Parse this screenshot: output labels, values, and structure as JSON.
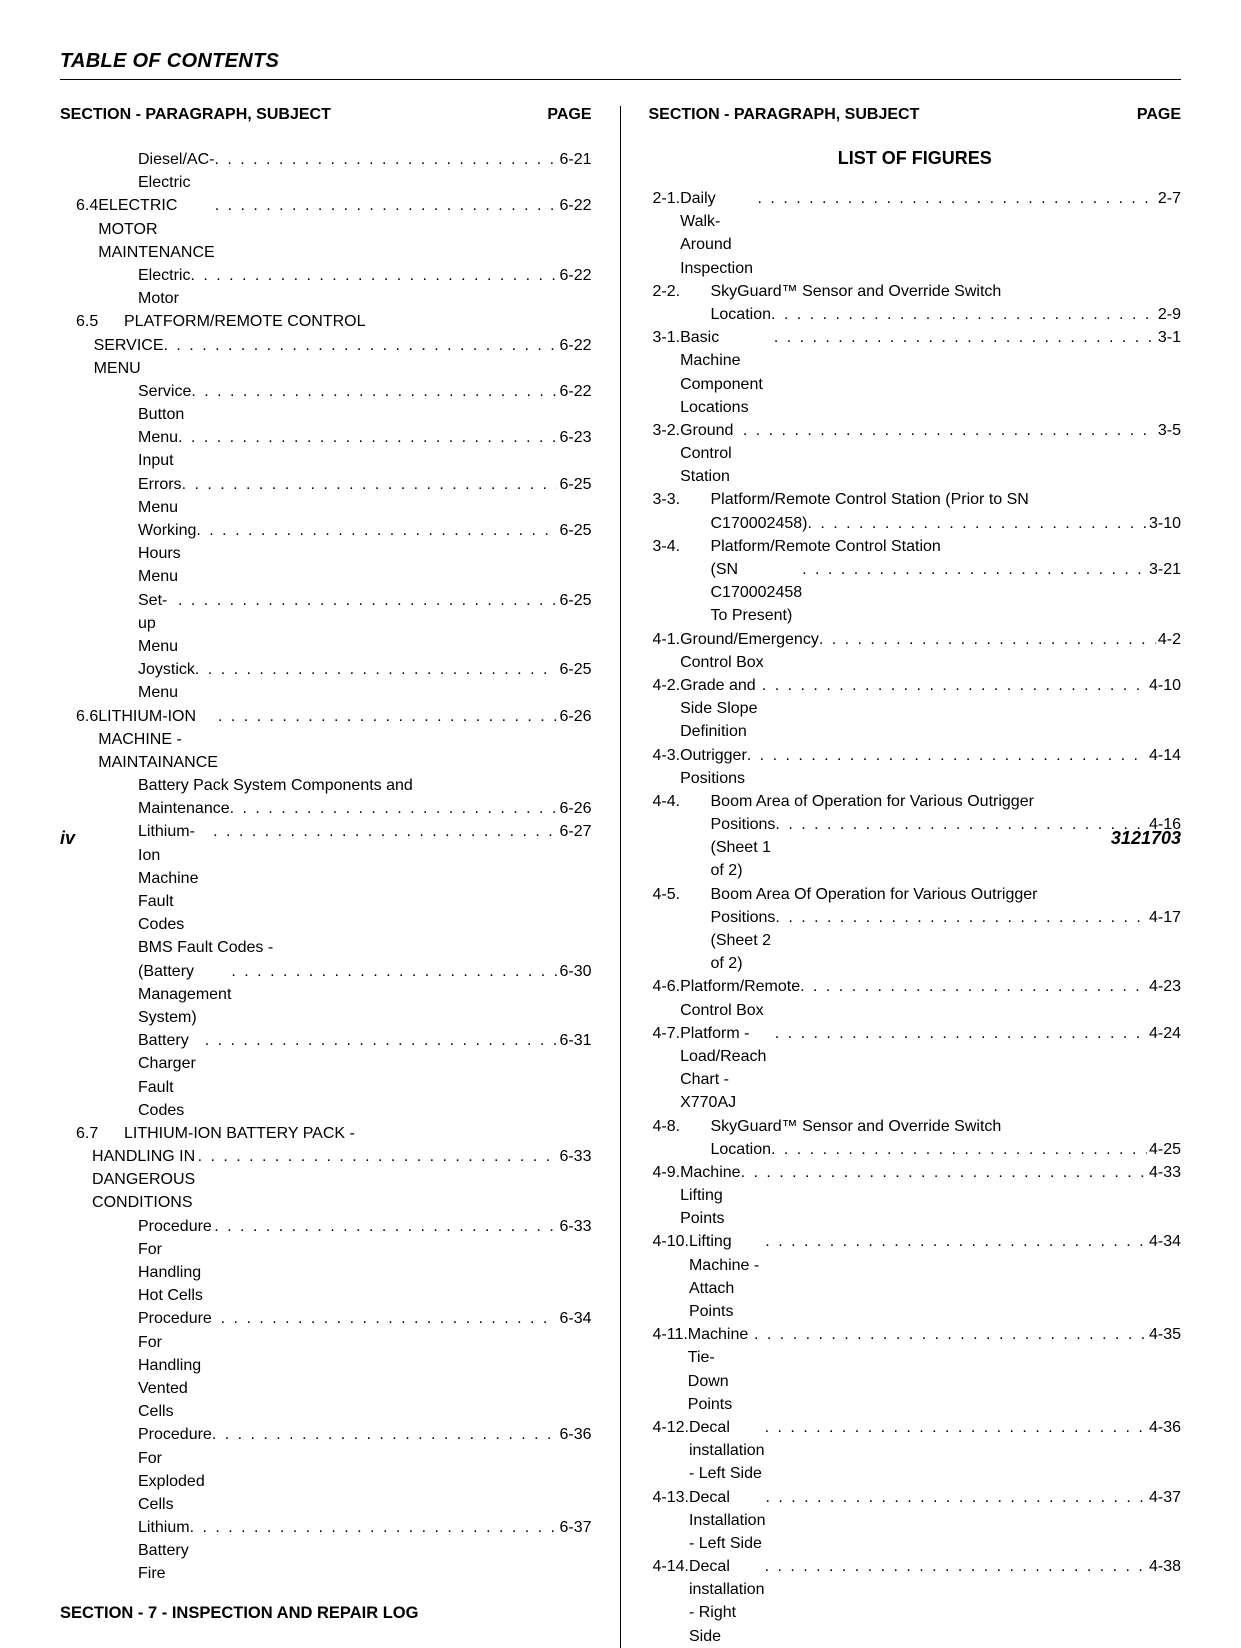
{
  "title": "TABLE OF CONTENTS",
  "col_header_left": "SECTION - PARAGRAPH, SUBJECT",
  "col_header_right": "PAGE",
  "lof_title": "LIST OF FIGURES",
  "section7": "SECTION - 7 - INSPECTION AND REPAIR LOG",
  "page_left": "iv",
  "page_right": "3121703",
  "left_entries": [
    {
      "kind": "sub",
      "label": "Diesel/AC-Electric",
      "page": "6-21"
    },
    {
      "kind": "section",
      "num": "6.4",
      "label": "ELECTRIC MOTOR MAINTENANCE",
      "page": "6-22"
    },
    {
      "kind": "sub",
      "label": "Electric Motor",
      "page": "6-22"
    },
    {
      "kind": "section2",
      "num": "6.5",
      "line1": "PLATFORM/REMOTE CONTROL",
      "label": "SERVICE MENU",
      "page": "6-22"
    },
    {
      "kind": "sub",
      "label": "Service Button",
      "page": "6-22"
    },
    {
      "kind": "sub",
      "label": "Menu Input",
      "page": "6-23"
    },
    {
      "kind": "sub",
      "label": "Errors Menu",
      "page": "6-25"
    },
    {
      "kind": "sub",
      "label": "Working Hours Menu",
      "page": "6-25"
    },
    {
      "kind": "sub",
      "label": "Set-up Menu",
      "page": "6-25"
    },
    {
      "kind": "sub",
      "label": "Joystick Menu",
      "page": "6-25"
    },
    {
      "kind": "section",
      "num": "6.6",
      "label": "LITHIUM-ION MACHINE - MAINTAINANCE",
      "page": "6-26"
    },
    {
      "kind": "sub2",
      "line1": "Battery Pack System Components and",
      "label": "Maintenance",
      "page": "6-26"
    },
    {
      "kind": "sub",
      "label": "Lithium-Ion Machine Fault Codes",
      "page": "6-27"
    },
    {
      "kind": "sub2",
      "line1": "BMS Fault Codes -",
      "label": "(Battery Management System)",
      "page": "6-30"
    },
    {
      "kind": "sub",
      "label": "Battery Charger Fault Codes",
      "page": "6-31"
    },
    {
      "kind": "section2",
      "num": "6.7",
      "line1": "LITHIUM-ION BATTERY PACK -",
      "label": "HANDLING IN DANGEROUS CONDITIONS",
      "page": "6-33"
    },
    {
      "kind": "sub",
      "label": "Procedure For Handling Hot Cells",
      "page": "6-33"
    },
    {
      "kind": "sub",
      "label": "Procedure For Handling Vented Cells",
      "page": "6-34"
    },
    {
      "kind": "sub",
      "label": "Procedure For Exploded Cells",
      "page": "6-36"
    },
    {
      "kind": "sub",
      "label": "Lithium Battery Fire",
      "page": "6-37"
    }
  ],
  "lof_entries": [
    {
      "num": "2-1.",
      "label": "Daily Walk-Around Inspection",
      "page": "2-7"
    },
    {
      "num": "2-2.",
      "line1": "SkyGuard™ Sensor and Override Switch",
      "label": "Location",
      "page": "2-9"
    },
    {
      "num": "3-1.",
      "label": "Basic Machine Component Locations",
      "page": "3-1"
    },
    {
      "num": "3-2.",
      "label": "Ground Control Station",
      "page": "3-5"
    },
    {
      "num": "3-3.",
      "line1": "Platform/Remote Control Station (Prior to SN",
      "label": "C170002458)",
      "page": "3-10"
    },
    {
      "num": "3-4.",
      "line1": "Platform/Remote Control Station",
      "label": "(SN C170002458 To Present)",
      "page": "3-21"
    },
    {
      "num": "4-1.",
      "label": "Ground/Emergency Control Box",
      "page": "4-2"
    },
    {
      "num": "4-2.",
      "label": "Grade and Side Slope Definition",
      "page": "4-10"
    },
    {
      "num": "4-3.",
      "label": "Outrigger Positions",
      "page": "4-14"
    },
    {
      "num": "4-4.",
      "line1": "Boom Area of Operation for Various Outrigger",
      "label": "Positions (Sheet 1 of 2)",
      "page": "4-16"
    },
    {
      "num": "4-5.",
      "line1": "Boom Area Of Operation for Various Outrigger",
      "label": "Positions (Sheet 2 of 2)",
      "page": "4-17"
    },
    {
      "num": "4-6.",
      "label": "Platform/Remote Control Box",
      "page": "4-23"
    },
    {
      "num": "4-7.",
      "label": "Platform - Load/Reach Chart - X770AJ",
      "page": "4-24"
    },
    {
      "num": "4-8.",
      "line1": "SkyGuard™ Sensor and Override Switch",
      "label": "Location",
      "page": "4-25"
    },
    {
      "num": "4-9.",
      "label": "Machine Lifting Points",
      "page": "4-33"
    },
    {
      "num": "4-10.",
      "label": "Lifting Machine - Attach Points",
      "page": "4-34"
    },
    {
      "num": "4-11.",
      "label": "Machine Tie-Down Points",
      "page": "4-35"
    },
    {
      "num": "4-12.",
      "label": "Decal installation - Left Side",
      "page": "4-36"
    },
    {
      "num": "4-13.",
      "label": "Decal Installation - Left Side",
      "page": "4-37"
    },
    {
      "num": "4-14.",
      "label": "Decal installation - Right Side",
      "page": "4-38"
    }
  ]
}
